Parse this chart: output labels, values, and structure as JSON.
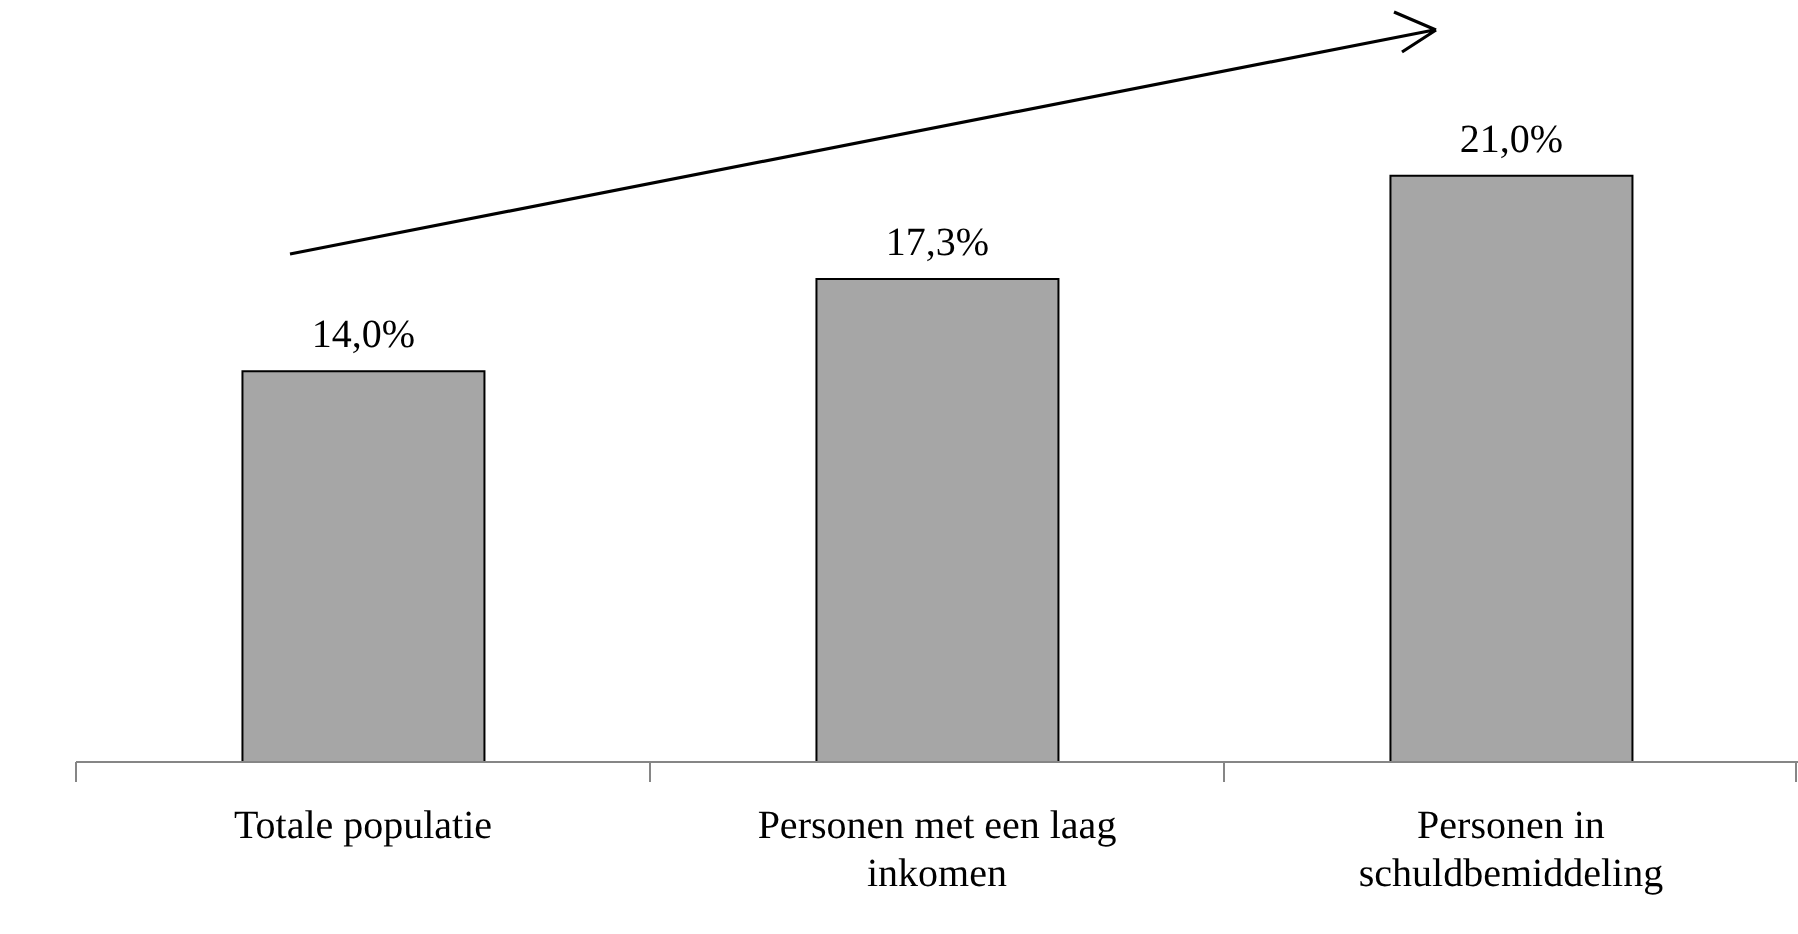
{
  "chart_data": {
    "type": "bar",
    "categories": [
      "Totale populatie",
      "Personen met een laag inkomen",
      "Personen in schuldbemiddeling"
    ],
    "values": [
      14.0,
      17.3,
      21.0
    ],
    "color": "#a6a6a6",
    "value_labels": [
      "14,0%",
      "17,3%",
      "21,0%"
    ]
  }
}
